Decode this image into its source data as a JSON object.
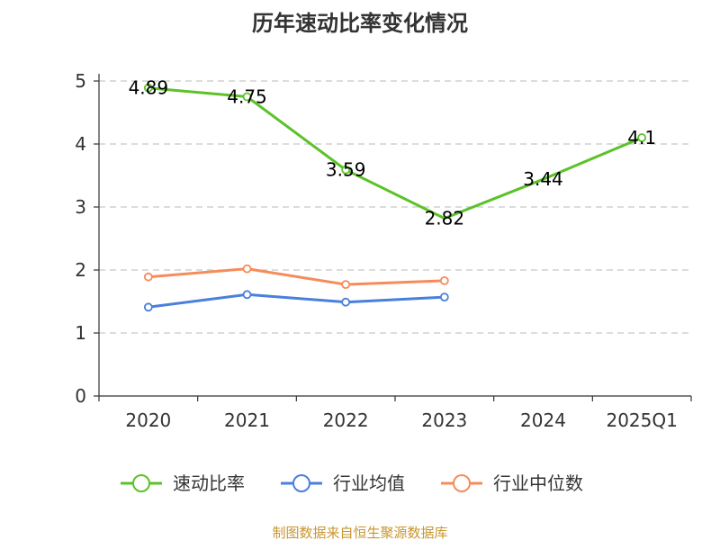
{
  "chart_data": {
    "type": "line",
    "title": "历年速动比率变化情况",
    "categories": [
      "2020",
      "2021",
      "2022",
      "2023",
      "2024",
      "2025Q1"
    ],
    "ylim": [
      0,
      5
    ],
    "yticks": [
      "0",
      "1",
      "2",
      "3",
      "4",
      "5"
    ],
    "grid": true,
    "legend_position": "bottom",
    "series": [
      {
        "name": "速动比率",
        "color": "#5bc228",
        "values": [
          4.89,
          4.75,
          3.59,
          2.82,
          3.44,
          4.1
        ],
        "labels": [
          "4.89",
          "4.75",
          "3.59",
          "2.82",
          "3.44",
          "4.1"
        ],
        "markers": [
          true,
          true,
          true,
          false,
          false,
          true
        ]
      },
      {
        "name": "行业均值",
        "color": "#4a7fdc",
        "values": [
          1.41,
          1.61,
          1.49,
          1.57,
          null,
          null
        ]
      },
      {
        "name": "行业中位数",
        "color": "#f58c5a",
        "values": [
          1.89,
          2.02,
          1.77,
          1.83,
          null,
          null
        ]
      }
    ]
  },
  "source": "制图数据来自恒生聚源数据库"
}
